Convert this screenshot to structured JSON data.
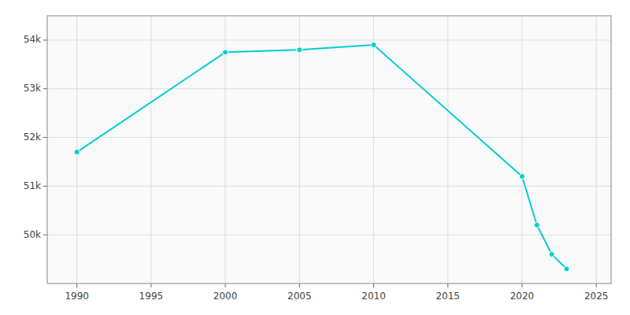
{
  "chart_data": {
    "type": "line",
    "x": [
      1990,
      2000,
      2005,
      2010,
      2020,
      2021,
      2022,
      2023
    ],
    "values": [
      51700,
      53750,
      53800,
      53900,
      51200,
      50200,
      49600,
      49300
    ],
    "color": "#00CED1",
    "marker": "circle",
    "xlim": [
      1988,
      2026
    ],
    "ylim": [
      49000,
      54500
    ],
    "xticks": [
      1990,
      1995,
      2000,
      2005,
      2010,
      2015,
      2020,
      2025
    ],
    "yticks": [
      {
        "value": 50000,
        "label": "50k"
      },
      {
        "value": 51000,
        "label": "51k"
      },
      {
        "value": 52000,
        "label": "52k"
      },
      {
        "value": 53000,
        "label": "53k"
      },
      {
        "value": 54000,
        "label": "54k"
      }
    ],
    "grid": true
  }
}
